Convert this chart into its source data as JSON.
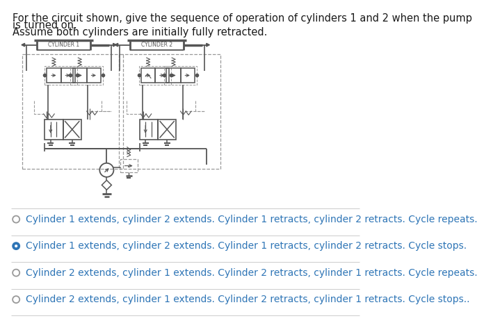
{
  "title_line1": "For the circuit shown, give the sequence of operation of cylinders 1 and 2 when the pump",
  "title_line2": "is turned on.",
  "title_line3": "Assume both cylinders are initially fully retracted.",
  "bg_color": "#ffffff",
  "text_color": "#1a1a1a",
  "diagram_color": "#555555",
  "dash_color": "#999999",
  "options": [
    {
      "text": "Cylinder 1 extends, cylinder 2 extends. Cylinder 1 retracts, cylinder 2 retracts. Cycle repeats.",
      "selected": false
    },
    {
      "text": "Cylinder 1 extends, cylinder 2 extends. Cylinder 1 retracts, cylinder 2 retracts. Cycle stops.",
      "selected": true
    },
    {
      "text": "Cylinder 2 extends, cylinder 1 extends. Cylinder 2 retracts, cylinder 1 retracts. Cycle repeats.",
      "selected": false
    },
    {
      "text": "Cylinder 2 extends, cylinder 1 extends. Cylinder 2 retracts, cylinder 1 retracts. Cycle stops..",
      "selected": false
    }
  ],
  "option_text_color": "#2e75b6",
  "selected_color": "#2e75b6",
  "divider_color": "#cccccc",
  "title_font_size": 10.5,
  "option_font_size": 10.0
}
